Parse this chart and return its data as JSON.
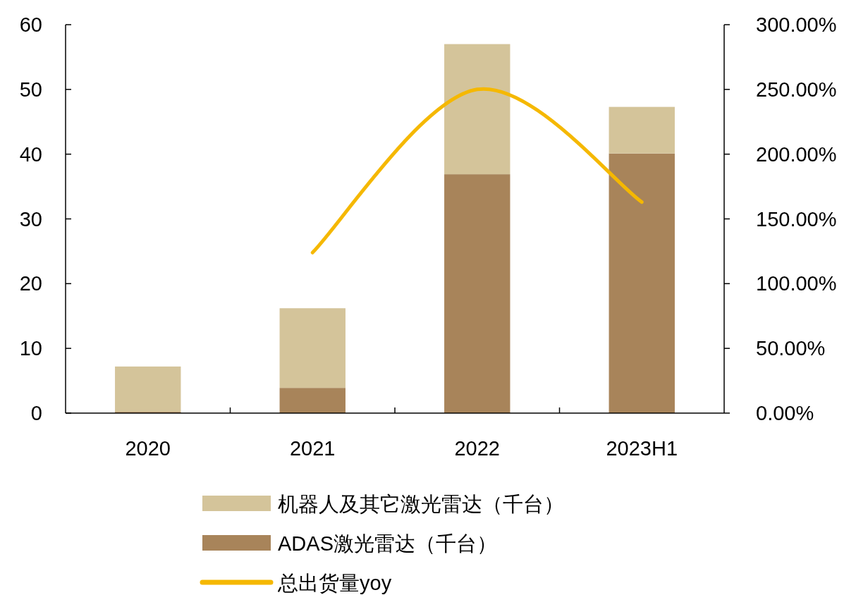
{
  "chart_data": {
    "type": "bar",
    "stacked": true,
    "categories": [
      "2020",
      "2021",
      "2022",
      "2023H1"
    ],
    "series": [
      {
        "name": "ADAS激光雷达（千台）",
        "color": "#a8845a",
        "values": [
          0.2,
          3.9,
          36.9,
          40.1
        ]
      },
      {
        "name": "机器人及其它激光雷达（千台）",
        "color": "#d4c49a",
        "values": [
          7.0,
          12.3,
          20.1,
          7.2
        ]
      },
      {
        "name": "总出货量yoy",
        "type": "line",
        "axis": "y2",
        "color": "#f5b800",
        "values": [
          null,
          124,
          250,
          163
        ]
      }
    ],
    "ylim": [
      0,
      60
    ],
    "yticks": [
      0,
      10,
      20,
      30,
      40,
      50,
      60
    ],
    "y2lim": [
      0,
      300
    ],
    "y2ticks": [
      {
        "value": 0,
        "label": "0.00%"
      },
      {
        "value": 50,
        "label": "50.00%"
      },
      {
        "value": 100,
        "label": "100.00%"
      },
      {
        "value": 150,
        "label": "150.00%"
      },
      {
        "value": 200,
        "label": "200.00%"
      },
      {
        "value": 250,
        "label": "250.00%"
      },
      {
        "value": 300,
        "label": "300.00%"
      }
    ],
    "legend": "bottom",
    "grid": false
  }
}
